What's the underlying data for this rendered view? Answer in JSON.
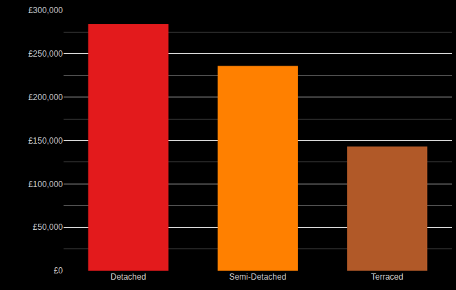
{
  "chart_data": {
    "type": "bar",
    "categories": [
      "Detached",
      "Semi-Detached",
      "Terraced"
    ],
    "values": [
      284000,
      236000,
      143000
    ],
    "colors": [
      "#e31a1c",
      "#ff8000",
      "#b15928"
    ],
    "ylim": [
      0,
      300000
    ],
    "yticks": [
      {
        "value": 0,
        "label": "£0"
      },
      {
        "value": 50000,
        "label": "£50,000"
      },
      {
        "value": 100000,
        "label": "£100,000"
      },
      {
        "value": 150000,
        "label": "£150,000"
      },
      {
        "value": 200000,
        "label": "£200,000"
      },
      {
        "value": 250000,
        "label": "£250,000"
      },
      {
        "value": 300000,
        "label": "£300,000"
      }
    ],
    "grid": true
  }
}
